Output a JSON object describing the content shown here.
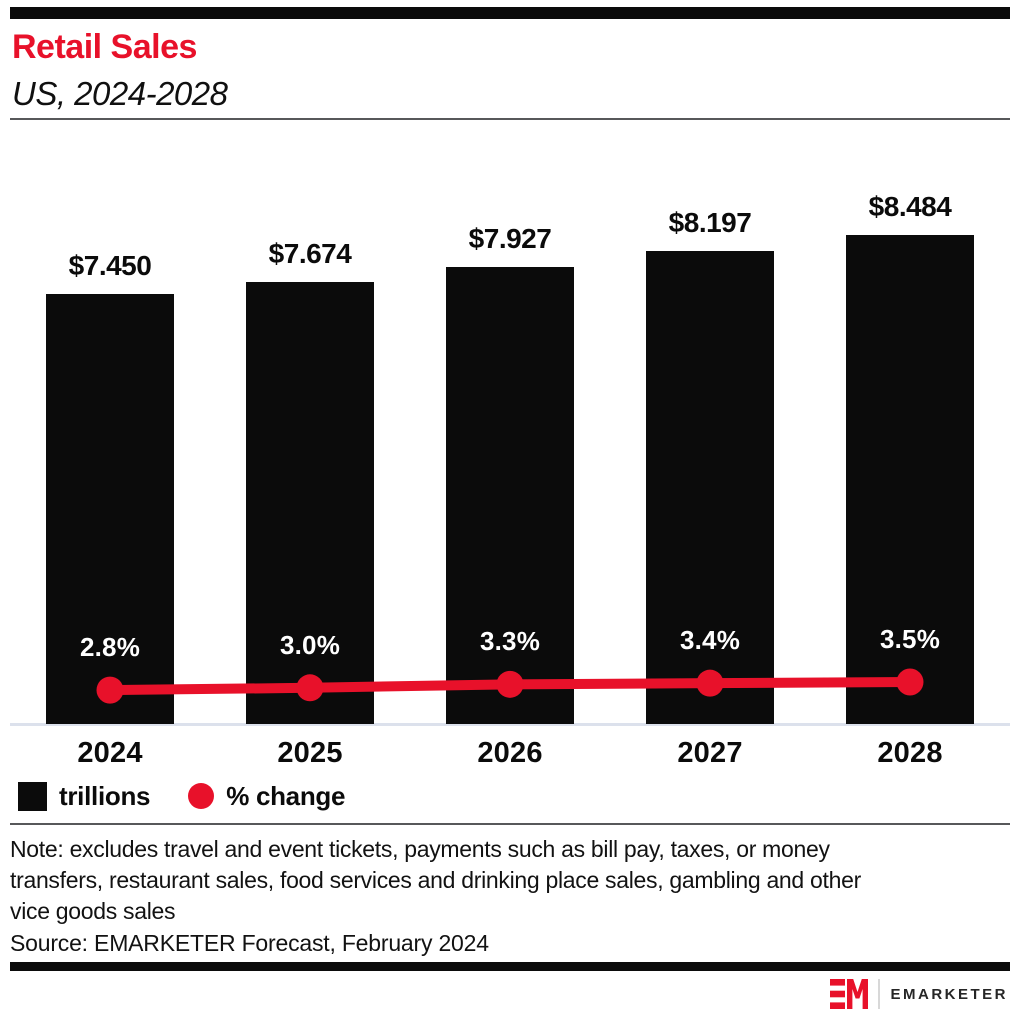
{
  "header": {
    "title": "Retail Sales",
    "subtitle": "US, 2024-2028"
  },
  "legend": {
    "bar_label": "trillions",
    "line_label": "% change"
  },
  "footer": {
    "note_lines": [
      "Note: excludes travel and event tickets, payments such as bill pay, taxes, or money",
      "transfers, restaurant sales, food services and drinking place sales, gambling and other",
      "vice goods sales"
    ],
    "source": "Source: EMARKETER Forecast, February 2024",
    "brand": "EMARKETER"
  },
  "colors": {
    "accent_red": "#e8112a",
    "bar_black": "#0b0b0b",
    "axis_line": "#dce1ec",
    "divider_gray": "#57585a"
  },
  "chart_data": {
    "type": "bar",
    "title": "Retail Sales",
    "subtitle": "US, 2024-2028",
    "categories": [
      "2024",
      "2025",
      "2026",
      "2027",
      "2028"
    ],
    "series": [
      {
        "name": "trillions",
        "type": "bar",
        "values": [
          7.45,
          7.674,
          7.927,
          8.197,
          8.484
        ],
        "labels": [
          "$7.450",
          "$7.674",
          "$7.927",
          "$8.197",
          "$8.484"
        ],
        "color": "#0b0b0b"
      },
      {
        "name": "% change",
        "type": "line",
        "values": [
          2.8,
          3.0,
          3.3,
          3.4,
          3.5
        ],
        "labels": [
          "2.8%",
          "3.0%",
          "3.3%",
          "3.4%",
          "3.5%"
        ],
        "color": "#e8112a"
      }
    ],
    "xlabel": "",
    "ylabel": "",
    "value_axis_visible": false,
    "grid": false,
    "legend_position": "bottom-left",
    "data_labels": "outside-end (bars), above-point (line)"
  }
}
